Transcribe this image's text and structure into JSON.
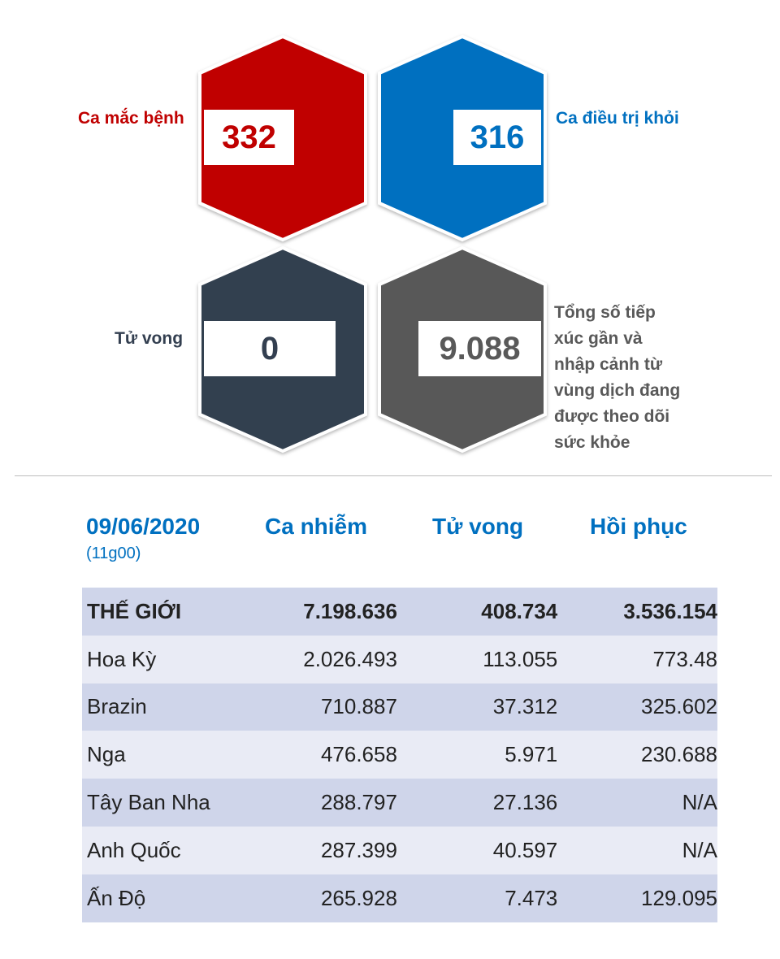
{
  "stats": {
    "cases": {
      "label": "Ca mắc bệnh",
      "value": "332",
      "color": "#c00000"
    },
    "recovered": {
      "label": "Ca điều trị khỏi",
      "value": "316",
      "color": "#0070c0"
    },
    "deaths": {
      "label": "Tử vong",
      "value": "0",
      "color": "#333f50"
    },
    "monitored": {
      "label_lines": [
        "Tổng số tiếp",
        "xúc gần và",
        "nhập cảnh từ",
        "vùng dịch đang",
        "được theo dõi",
        "sức khỏe"
      ],
      "value": "9.088",
      "color": "#595959"
    }
  },
  "table": {
    "date": "09/06/2020",
    "time": "(11g00)",
    "columns": [
      "Ca nhiễm",
      "Tử vong",
      "Hồi phục"
    ],
    "rows": [
      {
        "name": "THẾ GIỚI",
        "cases": "7.198.636",
        "deaths": "408.734",
        "recovered": "3.536.154"
      },
      {
        "name": "Hoa Kỳ",
        "cases": "2.026.493",
        "deaths": "113.055",
        "recovered": "773.48"
      },
      {
        "name": "Brazin",
        "cases": "710.887",
        "deaths": "37.312",
        "recovered": "325.602"
      },
      {
        "name": "Nga",
        "cases": "476.658",
        "deaths": "5.971",
        "recovered": "230.688"
      },
      {
        "name": "Tây Ban Nha",
        "cases": "288.797",
        "deaths": "27.136",
        "recovered": "N/A"
      },
      {
        "name": "Anh Quốc",
        "cases": "287.399",
        "deaths": "40.597",
        "recovered": "N/A"
      },
      {
        "name": "Ấn Độ",
        "cases": "265.928",
        "deaths": "7.473",
        "recovered": "129.095"
      }
    ]
  }
}
